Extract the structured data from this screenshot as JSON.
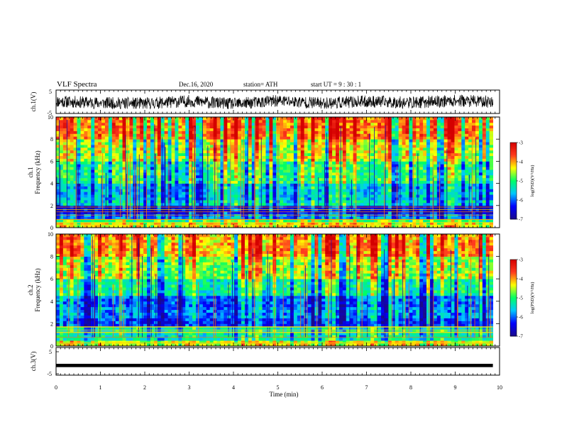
{
  "header": {
    "title": "VLF Spectra",
    "date": "Dec.16, 2020",
    "station": "station= ATH",
    "start": "start  UT =   9 : 30 : 1"
  },
  "colors": {
    "frame": "#000000",
    "colormap": [
      "#1a0a8c",
      "#0000ff",
      "#00c8ff",
      "#00ff66",
      "#ffff00",
      "#ff3b1f",
      "#d40000"
    ]
  },
  "chart_data": [
    {
      "type": "line",
      "panel": "ch1-waveform",
      "ylabel": "ch.1(V)",
      "ylim": [
        -5,
        5
      ],
      "yticks": [
        "5",
        "-5"
      ],
      "x": [
        0,
        1,
        2,
        3,
        4,
        5,
        6,
        7,
        8,
        9,
        9.85
      ],
      "values": [
        0.2,
        -0.5,
        -0.8,
        0.3,
        -1.0,
        0.4,
        -0.6,
        0.1,
        -0.4,
        0.5,
        0.0
      ],
      "envelope": [
        -3,
        3
      ]
    },
    {
      "type": "heatmap",
      "panel": "ch1-spectrogram",
      "ylabel": "ch.1",
      "ylabel2": "Frequency  (kHz)",
      "ylim": [
        0,
        10
      ],
      "yticks": [
        "10",
        "8",
        "6",
        "4",
        "2",
        "0"
      ],
      "xlim": [
        0,
        10
      ],
      "data_end_min": 9.85,
      "colorbar": {
        "label": "log(PSD)(V²/Hz)",
        "range": [
          -7,
          -3
        ],
        "ticks": [
          "-3",
          "-4",
          "-5",
          "-6",
          "-7"
        ]
      },
      "band_levels": [
        {
          "f": [
            0.0,
            0.4
          ],
          "level": -4.2
        },
        {
          "f": [
            0.4,
            0.8
          ],
          "level": -4.8
        },
        {
          "f": [
            0.8,
            1.2
          ],
          "level": -5.8
        },
        {
          "f": [
            1.2,
            1.9
          ],
          "level": -6.4
        },
        {
          "f": [
            1.9,
            2.4
          ],
          "level": -5.4
        },
        {
          "f": [
            2.4,
            4.0
          ],
          "level": -5.6
        },
        {
          "f": [
            4.0,
            6.0
          ],
          "level": -5.0
        },
        {
          "f": [
            6.0,
            8.0
          ],
          "level": -4.4
        },
        {
          "f": [
            8.0,
            10.0
          ],
          "level": -3.8
        }
      ]
    },
    {
      "type": "heatmap",
      "panel": "ch2-spectrogram",
      "ylabel": "ch.2",
      "ylabel2": "Frequency  (kHz)",
      "ylim": [
        0,
        10
      ],
      "yticks": [
        "10",
        "8",
        "6",
        "4",
        "2",
        "0"
      ],
      "xlim": [
        0,
        10
      ],
      "data_end_min": 9.85,
      "colorbar": {
        "label": "log(PSD)(V²/Hz)",
        "range": [
          -7,
          -3
        ],
        "ticks": [
          "-3",
          "-4",
          "-5",
          "-6",
          "-7"
        ]
      },
      "band_levels": [
        {
          "f": [
            0.0,
            0.6
          ],
          "level": -4.4
        },
        {
          "f": [
            0.6,
            1.8
          ],
          "level": -5.3
        },
        {
          "f": [
            1.8,
            2.6
          ],
          "level": -6.2
        },
        {
          "f": [
            2.6,
            3.5
          ],
          "level": -5.9
        },
        {
          "f": [
            3.5,
            4.6
          ],
          "level": -6.0
        },
        {
          "f": [
            4.6,
            6.0
          ],
          "level": -5.2
        },
        {
          "f": [
            6.0,
            8.0
          ],
          "level": -4.6
        },
        {
          "f": [
            8.0,
            10.0
          ],
          "level": -4.0
        }
      ]
    },
    {
      "type": "line",
      "panel": "ch3-waveform",
      "ylabel": "ch.3(V)",
      "ylim": [
        -5,
        5
      ],
      "yticks": [
        "5",
        "-5"
      ],
      "x": [
        0,
        9.85
      ],
      "values": [
        -1.5,
        -1.5
      ],
      "thickness_v": 0.6
    }
  ],
  "xaxis": {
    "label": "Time  (min)",
    "ticks": [
      "0",
      "1",
      "2",
      "3",
      "4",
      "5",
      "6",
      "7",
      "8",
      "9",
      "10"
    ],
    "range": [
      0,
      10
    ]
  }
}
